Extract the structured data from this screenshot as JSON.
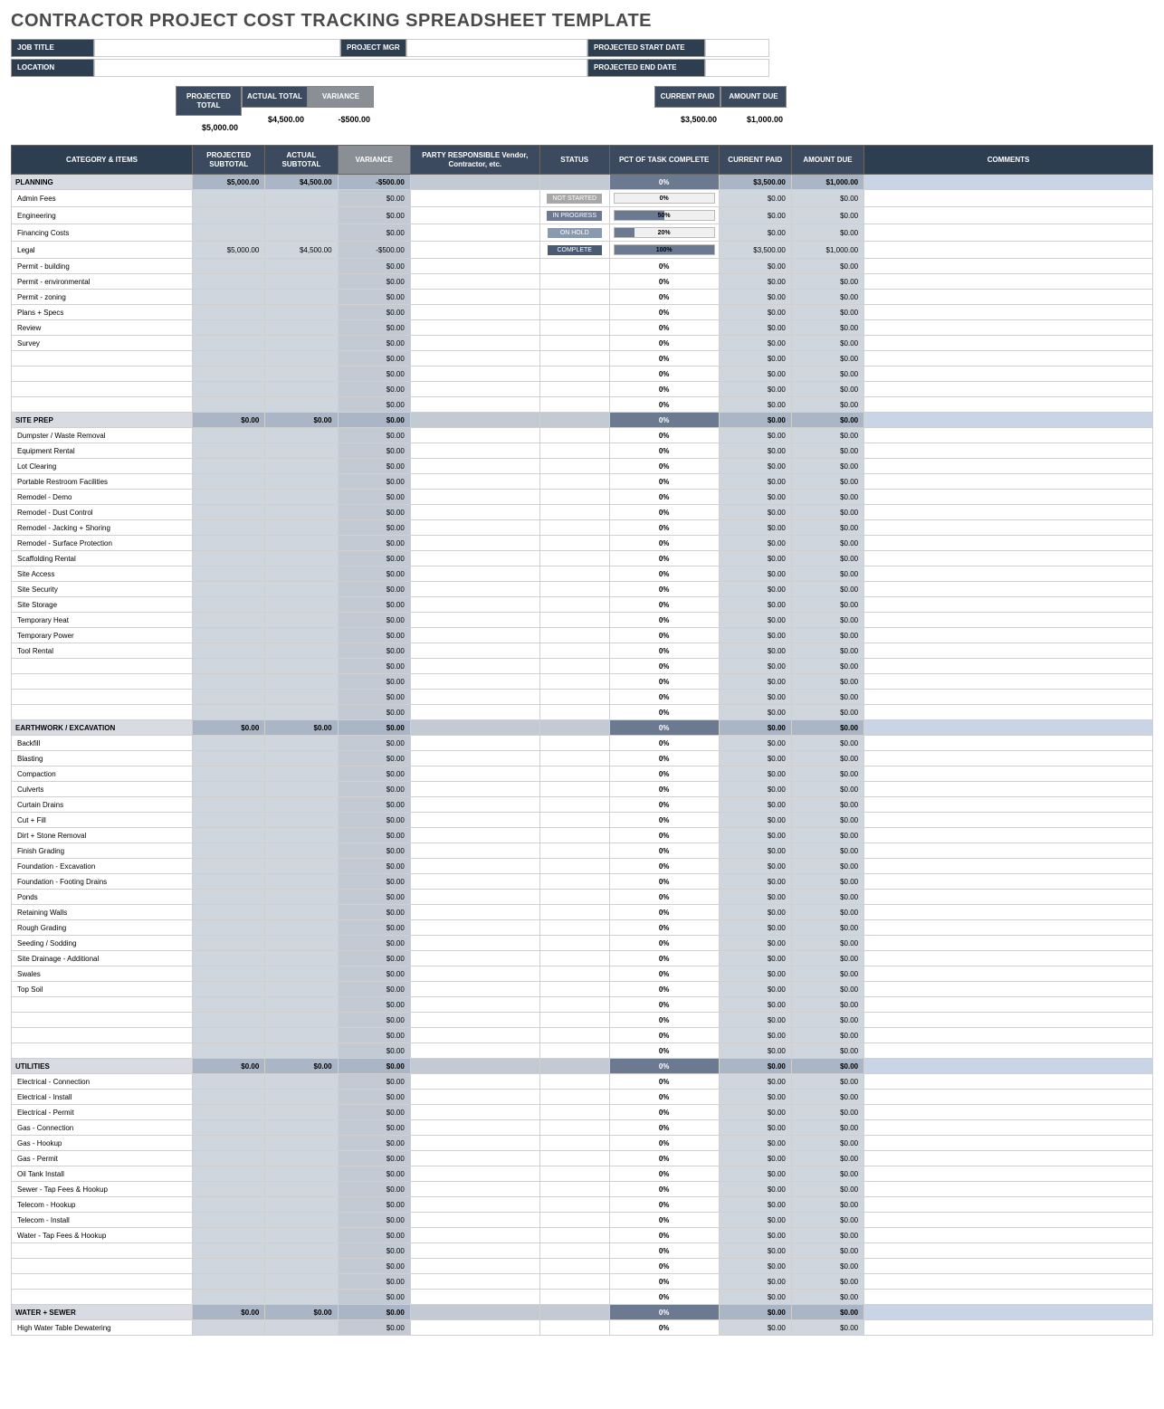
{
  "title": "CONTRACTOR PROJECT COST TRACKING SPREADSHEET TEMPLATE",
  "meta_labels": {
    "job": "JOB TITLE",
    "mgr": "PROJECT MGR",
    "start": "PROJECTED START DATE",
    "loc": "LOCATION",
    "end": "PROJECTED END DATE"
  },
  "summary": {
    "proj_total_h": "PROJECTED\nTOTAL",
    "act_total_h": "ACTUAL\nTOTAL",
    "var_h": "VARIANCE",
    "paid_h": "CURRENT PAID",
    "due_h": "AMOUNT DUE",
    "proj_total": "$5,000.00",
    "act_total": "$4,500.00",
    "variance": "-$500.00",
    "paid": "$3,500.00",
    "due": "$1,000.00"
  },
  "cols": {
    "cat": "CATEGORY & ITEMS",
    "psub": "PROJECTED\nSUBTOTAL",
    "asub": "ACTUAL\nSUBTOTAL",
    "var": "VARIANCE",
    "party": "PARTY RESPONSIBLE\nVendor, Contractor, etc.",
    "status": "STATUS",
    "pct": "PCT OF TASK COMPLETE",
    "paid": "CURRENT PAID",
    "due": "AMOUNT DUE",
    "com": "COMMENTS"
  },
  "colwidths": {
    "cat": 182,
    "psub": 73,
    "asub": 73,
    "var": 73,
    "party": 130,
    "status": 70,
    "pct": 110,
    "paid": 73,
    "due": 73,
    "com": 290
  },
  "colors": {
    "navy": "#2d3e50",
    "hdr_navy": "#3b4a5e",
    "hdr_gray": "#8a8f96",
    "sec_name": "#d8dce2",
    "sec_num": "#aab5c5",
    "sec_pct": "#6b7a90",
    "cell_gray": "#d0d6de",
    "cell_dgray": "#c3cad4"
  },
  "statuses": {
    "ns": "NOT STARTED",
    "ip": "IN PROGRESS",
    "oh": "ON HOLD",
    "cp": "COMPLETE"
  },
  "sections": [
    {
      "name": "PLANNING",
      "psub": "$5,000.00",
      "asub": "$4,500.00",
      "var": "-$500.00",
      "pct": "0%",
      "paid": "$3,500.00",
      "due": "$1,000.00",
      "items": [
        {
          "n": "Admin Fees",
          "v": "$0.00",
          "st": "ns",
          "pct": "0%",
          "pctv": 0,
          "pd": "$0.00",
          "du": "$0.00"
        },
        {
          "n": "Engineering",
          "v": "$0.00",
          "st": "ip",
          "pct": "50%",
          "pctv": 50,
          "pd": "$0.00",
          "du": "$0.00"
        },
        {
          "n": "Financing Costs",
          "v": "$0.00",
          "st": "oh",
          "pct": "20%",
          "pctv": 20,
          "pd": "$0.00",
          "du": "$0.00"
        },
        {
          "n": "Legal",
          "ps": "$5,000.00",
          "as": "$4,500.00",
          "v": "-$500.00",
          "st": "cp",
          "pct": "100%",
          "pctv": 100,
          "pd": "$3,500.00",
          "du": "$1,000.00"
        },
        {
          "n": "Permit - building",
          "v": "$0.00",
          "pct": "0%",
          "pd": "$0.00",
          "du": "$0.00"
        },
        {
          "n": "Permit - environmental",
          "v": "$0.00",
          "pct": "0%",
          "pd": "$0.00",
          "du": "$0.00"
        },
        {
          "n": "Permit - zoning",
          "v": "$0.00",
          "pct": "0%",
          "pd": "$0.00",
          "du": "$0.00"
        },
        {
          "n": "Plans + Specs",
          "v": "$0.00",
          "pct": "0%",
          "pd": "$0.00",
          "du": "$0.00"
        },
        {
          "n": "Review",
          "v": "$0.00",
          "pct": "0%",
          "pd": "$0.00",
          "du": "$0.00"
        },
        {
          "n": "Survey",
          "v": "$0.00",
          "pct": "0%",
          "pd": "$0.00",
          "du": "$0.00"
        },
        {
          "n": "",
          "v": "$0.00",
          "pct": "0%",
          "pd": "$0.00",
          "du": "$0.00"
        },
        {
          "n": "",
          "v": "$0.00",
          "pct": "0%",
          "pd": "$0.00",
          "du": "$0.00"
        },
        {
          "n": "",
          "v": "$0.00",
          "pct": "0%",
          "pd": "$0.00",
          "du": "$0.00"
        },
        {
          "n": "",
          "v": "$0.00",
          "pct": "0%",
          "pd": "$0.00",
          "du": "$0.00"
        }
      ]
    },
    {
      "name": "SITE PREP",
      "psub": "$0.00",
      "asub": "$0.00",
      "var": "$0.00",
      "pct": "0%",
      "paid": "$0.00",
      "due": "$0.00",
      "items": [
        {
          "n": "Dumpster / Waste Removal",
          "v": "$0.00",
          "pct": "0%",
          "pd": "$0.00",
          "du": "$0.00"
        },
        {
          "n": "Equipment Rental",
          "v": "$0.00",
          "pct": "0%",
          "pd": "$0.00",
          "du": "$0.00"
        },
        {
          "n": "Lot Clearing",
          "v": "$0.00",
          "pct": "0%",
          "pd": "$0.00",
          "du": "$0.00"
        },
        {
          "n": "Portable Restroom Facilities",
          "v": "$0.00",
          "pct": "0%",
          "pd": "$0.00",
          "du": "$0.00"
        },
        {
          "n": "Remodel - Demo",
          "v": "$0.00",
          "pct": "0%",
          "pd": "$0.00",
          "du": "$0.00"
        },
        {
          "n": "Remodel - Dust Control",
          "v": "$0.00",
          "pct": "0%",
          "pd": "$0.00",
          "du": "$0.00"
        },
        {
          "n": "Remodel - Jacking + Shoring",
          "v": "$0.00",
          "pct": "0%",
          "pd": "$0.00",
          "du": "$0.00"
        },
        {
          "n": "Remodel - Surface Protection",
          "v": "$0.00",
          "pct": "0%",
          "pd": "$0.00",
          "du": "$0.00"
        },
        {
          "n": "Scaffolding Rental",
          "v": "$0.00",
          "pct": "0%",
          "pd": "$0.00",
          "du": "$0.00"
        },
        {
          "n": "Site Access",
          "v": "$0.00",
          "pct": "0%",
          "pd": "$0.00",
          "du": "$0.00"
        },
        {
          "n": "Site Security",
          "v": "$0.00",
          "pct": "0%",
          "pd": "$0.00",
          "du": "$0.00"
        },
        {
          "n": "Site Storage",
          "v": "$0.00",
          "pct": "0%",
          "pd": "$0.00",
          "du": "$0.00"
        },
        {
          "n": "Temporary Heat",
          "v": "$0.00",
          "pct": "0%",
          "pd": "$0.00",
          "du": "$0.00"
        },
        {
          "n": "Temporary Power",
          "v": "$0.00",
          "pct": "0%",
          "pd": "$0.00",
          "du": "$0.00"
        },
        {
          "n": "Tool Rental",
          "v": "$0.00",
          "pct": "0%",
          "pd": "$0.00",
          "du": "$0.00"
        },
        {
          "n": "",
          "v": "$0.00",
          "pct": "0%",
          "pd": "$0.00",
          "du": "$0.00"
        },
        {
          "n": "",
          "v": "$0.00",
          "pct": "0%",
          "pd": "$0.00",
          "du": "$0.00"
        },
        {
          "n": "",
          "v": "$0.00",
          "pct": "0%",
          "pd": "$0.00",
          "du": "$0.00"
        },
        {
          "n": "",
          "v": "$0.00",
          "pct": "0%",
          "pd": "$0.00",
          "du": "$0.00"
        }
      ]
    },
    {
      "name": "EARTHWORK / EXCAVATION",
      "psub": "$0.00",
      "asub": "$0.00",
      "var": "$0.00",
      "pct": "0%",
      "paid": "$0.00",
      "due": "$0.00",
      "items": [
        {
          "n": "Backfill",
          "v": "$0.00",
          "pct": "0%",
          "pd": "$0.00",
          "du": "$0.00"
        },
        {
          "n": "Blasting",
          "v": "$0.00",
          "pct": "0%",
          "pd": "$0.00",
          "du": "$0.00"
        },
        {
          "n": "Compaction",
          "v": "$0.00",
          "pct": "0%",
          "pd": "$0.00",
          "du": "$0.00"
        },
        {
          "n": "Culverts",
          "v": "$0.00",
          "pct": "0%",
          "pd": "$0.00",
          "du": "$0.00"
        },
        {
          "n": "Curtain Drains",
          "v": "$0.00",
          "pct": "0%",
          "pd": "$0.00",
          "du": "$0.00"
        },
        {
          "n": "Cut + Fill",
          "v": "$0.00",
          "pct": "0%",
          "pd": "$0.00",
          "du": "$0.00"
        },
        {
          "n": "Dirt + Stone Removal",
          "v": "$0.00",
          "pct": "0%",
          "pd": "$0.00",
          "du": "$0.00"
        },
        {
          "n": "Finish Grading",
          "v": "$0.00",
          "pct": "0%",
          "pd": "$0.00",
          "du": "$0.00"
        },
        {
          "n": "Foundation - Excavation",
          "v": "$0.00",
          "pct": "0%",
          "pd": "$0.00",
          "du": "$0.00"
        },
        {
          "n": "Foundation - Footing Drains",
          "v": "$0.00",
          "pct": "0%",
          "pd": "$0.00",
          "du": "$0.00"
        },
        {
          "n": "Ponds",
          "v": "$0.00",
          "pct": "0%",
          "pd": "$0.00",
          "du": "$0.00"
        },
        {
          "n": "Retaining Walls",
          "v": "$0.00",
          "pct": "0%",
          "pd": "$0.00",
          "du": "$0.00"
        },
        {
          "n": "Rough Grading",
          "v": "$0.00",
          "pct": "0%",
          "pd": "$0.00",
          "du": "$0.00"
        },
        {
          "n": "Seeding / Sodding",
          "v": "$0.00",
          "pct": "0%",
          "pd": "$0.00",
          "du": "$0.00"
        },
        {
          "n": "Site Drainage - Additional",
          "v": "$0.00",
          "pct": "0%",
          "pd": "$0.00",
          "du": "$0.00"
        },
        {
          "n": "Swales",
          "v": "$0.00",
          "pct": "0%",
          "pd": "$0.00",
          "du": "$0.00"
        },
        {
          "n": "Top Soil",
          "v": "$0.00",
          "pct": "0%",
          "pd": "$0.00",
          "du": "$0.00"
        },
        {
          "n": "",
          "v": "$0.00",
          "pct": "0%",
          "pd": "$0.00",
          "du": "$0.00"
        },
        {
          "n": "",
          "v": "$0.00",
          "pct": "0%",
          "pd": "$0.00",
          "du": "$0.00"
        },
        {
          "n": "",
          "v": "$0.00",
          "pct": "0%",
          "pd": "$0.00",
          "du": "$0.00"
        },
        {
          "n": "",
          "v": "$0.00",
          "pct": "0%",
          "pd": "$0.00",
          "du": "$0.00"
        }
      ]
    },
    {
      "name": "UTILITIES",
      "psub": "$0.00",
      "asub": "$0.00",
      "var": "$0.00",
      "pct": "0%",
      "paid": "$0.00",
      "due": "$0.00",
      "items": [
        {
          "n": "Electrical - Connection",
          "v": "$0.00",
          "pct": "0%",
          "pd": "$0.00",
          "du": "$0.00"
        },
        {
          "n": "Electrical - Install",
          "v": "$0.00",
          "pct": "0%",
          "pd": "$0.00",
          "du": "$0.00"
        },
        {
          "n": "Electrical - Permit",
          "v": "$0.00",
          "pct": "0%",
          "pd": "$0.00",
          "du": "$0.00"
        },
        {
          "n": "Gas - Connection",
          "v": "$0.00",
          "pct": "0%",
          "pd": "$0.00",
          "du": "$0.00"
        },
        {
          "n": "Gas - Hookup",
          "v": "$0.00",
          "pct": "0%",
          "pd": "$0.00",
          "du": "$0.00"
        },
        {
          "n": "Gas - Permit",
          "v": "$0.00",
          "pct": "0%",
          "pd": "$0.00",
          "du": "$0.00"
        },
        {
          "n": "Oil Tank Install",
          "v": "$0.00",
          "pct": "0%",
          "pd": "$0.00",
          "du": "$0.00"
        },
        {
          "n": "Sewer - Tap Fees & Hookup",
          "v": "$0.00",
          "pct": "0%",
          "pd": "$0.00",
          "du": "$0.00"
        },
        {
          "n": "Telecom - Hookup",
          "v": "$0.00",
          "pct": "0%",
          "pd": "$0.00",
          "du": "$0.00"
        },
        {
          "n": "Telecom - Install",
          "v": "$0.00",
          "pct": "0%",
          "pd": "$0.00",
          "du": "$0.00"
        },
        {
          "n": "Water - Tap Fees & Hookup",
          "v": "$0.00",
          "pct": "0%",
          "pd": "$0.00",
          "du": "$0.00"
        },
        {
          "n": "",
          "v": "$0.00",
          "pct": "0%",
          "pd": "$0.00",
          "du": "$0.00"
        },
        {
          "n": "",
          "v": "$0.00",
          "pct": "0%",
          "pd": "$0.00",
          "du": "$0.00"
        },
        {
          "n": "",
          "v": "$0.00",
          "pct": "0%",
          "pd": "$0.00",
          "du": "$0.00"
        },
        {
          "n": "",
          "v": "$0.00",
          "pct": "0%",
          "pd": "$0.00",
          "du": "$0.00"
        }
      ]
    },
    {
      "name": "WATER + SEWER",
      "psub": "$0.00",
      "asub": "$0.00",
      "var": "$0.00",
      "pct": "0%",
      "paid": "$0.00",
      "due": "$0.00",
      "items": [
        {
          "n": "High Water Table Dewatering",
          "v": "$0.00",
          "pct": "0%",
          "pd": "$0.00",
          "du": "$0.00"
        }
      ]
    }
  ]
}
